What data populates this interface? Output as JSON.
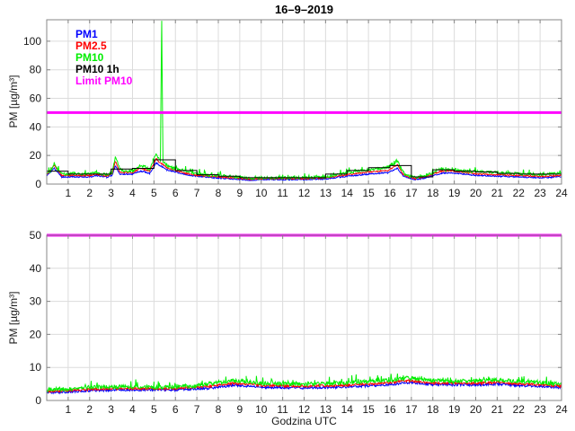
{
  "figure": {
    "title": "16–9–2019"
  },
  "legend": {
    "items": [
      {
        "label": "PM1",
        "color": "#0000ff"
      },
      {
        "label": "PM2.5",
        "color": "#ff0000"
      },
      {
        "label": "PM10",
        "color": "#00ee00"
      },
      {
        "label": "PM10 1h",
        "color": "#000000"
      },
      {
        "label": "Limit PM10",
        "color": "#ff00ff"
      }
    ]
  },
  "chart_data": [
    {
      "type": "line",
      "title": "16–9–2019",
      "xlabel": "",
      "ylabel": "PM [µg/m³]",
      "xlim": [
        0,
        24
      ],
      "ylim": [
        0,
        115
      ],
      "xticks": [
        1,
        2,
        3,
        4,
        5,
        6,
        7,
        8,
        9,
        10,
        11,
        12,
        13,
        14,
        15,
        16,
        17,
        18,
        19,
        20,
        21,
        22,
        23,
        24
      ],
      "yticks": [
        0,
        20,
        40,
        60,
        80,
        100
      ],
      "grid": true,
      "legend_position": "top-left-inside",
      "series": [
        {
          "name": "PM1",
          "color": "#0000ff",
          "width": 1,
          "noise": 0.45,
          "spikes": 0,
          "keypoints": [
            [
              0,
              5.5
            ],
            [
              0.35,
              11
            ],
            [
              0.7,
              5
            ],
            [
              1,
              5
            ],
            [
              2,
              5
            ],
            [
              2.3,
              6
            ],
            [
              2.8,
              4.8
            ],
            [
              3.05,
              6
            ],
            [
              3.2,
              13
            ],
            [
              3.4,
              7
            ],
            [
              3.6,
              7
            ],
            [
              4,
              7
            ],
            [
              4.35,
              9
            ],
            [
              4.6,
              8.5
            ],
            [
              4.8,
              7.5
            ],
            [
              4.95,
              11
            ],
            [
              5.1,
              15
            ],
            [
              5.25,
              13
            ],
            [
              5.4,
              12
            ],
            [
              5.6,
              10
            ],
            [
              6,
              8.5
            ],
            [
              6.5,
              6.5
            ],
            [
              7,
              5.5
            ],
            [
              8,
              4.2
            ],
            [
              9,
              3.3
            ],
            [
              9.5,
              2.8
            ],
            [
              10,
              3.2
            ],
            [
              11,
              3.2
            ],
            [
              12,
              3.2
            ],
            [
              13,
              3.6
            ],
            [
              14,
              5.5
            ],
            [
              15,
              7
            ],
            [
              15.9,
              8
            ],
            [
              16.35,
              11
            ],
            [
              16.6,
              6
            ],
            [
              16.9,
              4
            ],
            [
              17.2,
              3.2
            ],
            [
              17.6,
              4
            ],
            [
              18,
              6
            ],
            [
              18.4,
              7.5
            ],
            [
              18.9,
              7.8
            ],
            [
              19.4,
              7
            ],
            [
              20,
              6.2
            ],
            [
              21,
              5.5
            ],
            [
              22,
              5
            ],
            [
              23,
              4.5
            ],
            [
              23.5,
              4.8
            ],
            [
              24,
              5.2
            ]
          ]
        },
        {
          "name": "PM2.5",
          "color": "#ff0000",
          "width": 1,
          "noise": 0.45,
          "spikes": 0,
          "keypoints": [
            [
              0,
              6.5
            ],
            [
              0.35,
              13
            ],
            [
              0.7,
              6
            ],
            [
              1,
              6
            ],
            [
              2,
              6
            ],
            [
              2.3,
              7
            ],
            [
              2.8,
              5.6
            ],
            [
              3.05,
              7
            ],
            [
              3.2,
              16
            ],
            [
              3.4,
              8.5
            ],
            [
              3.6,
              8
            ],
            [
              4,
              8
            ],
            [
              4.35,
              11
            ],
            [
              4.6,
              10
            ],
            [
              4.8,
              9
            ],
            [
              4.95,
              13
            ],
            [
              5.1,
              18
            ],
            [
              5.25,
              15
            ],
            [
              5.4,
              14
            ],
            [
              5.6,
              11.5
            ],
            [
              6,
              9.5
            ],
            [
              6.5,
              7.5
            ],
            [
              7,
              6.2
            ],
            [
              8,
              5
            ],
            [
              9,
              4
            ],
            [
              9.5,
              3.3
            ],
            [
              10,
              3.8
            ],
            [
              11,
              3.8
            ],
            [
              12,
              3.8
            ],
            [
              13,
              4.3
            ],
            [
              14,
              6.5
            ],
            [
              15,
              8.5
            ],
            [
              15.9,
              9.5
            ],
            [
              16.35,
              13.5
            ],
            [
              16.6,
              7
            ],
            [
              16.9,
              4.8
            ],
            [
              17.2,
              3.9
            ],
            [
              17.6,
              5
            ],
            [
              18,
              7
            ],
            [
              18.4,
              9
            ],
            [
              18.9,
              9.3
            ],
            [
              19.4,
              8.2
            ],
            [
              20,
              7.3
            ],
            [
              21,
              6.5
            ],
            [
              22,
              6
            ],
            [
              23,
              5.4
            ],
            [
              23.5,
              5.7
            ],
            [
              24,
              6.1
            ]
          ]
        },
        {
          "name": "PM10",
          "color": "#00ee00",
          "width": 1,
          "noise": 0.9,
          "spikes": 1.6,
          "keypoints": [
            [
              0,
              8
            ],
            [
              0.2,
              9
            ],
            [
              0.35,
              15
            ],
            [
              0.5,
              10
            ],
            [
              0.7,
              7
            ],
            [
              1,
              7
            ],
            [
              1.3,
              7.5
            ],
            [
              1.7,
              7
            ],
            [
              2,
              7
            ],
            [
              2.3,
              8.5
            ],
            [
              2.5,
              7
            ],
            [
              2.8,
              6.5
            ],
            [
              3.05,
              8
            ],
            [
              3.2,
              19
            ],
            [
              3.4,
              11
            ],
            [
              3.6,
              9
            ],
            [
              3.9,
              9
            ],
            [
              4.1,
              10
            ],
            [
              4.35,
              13
            ],
            [
              4.6,
              12
            ],
            [
              4.8,
              10
            ],
            [
              4.95,
              16
            ],
            [
              5.1,
              21
            ],
            [
              5.25,
              17
            ],
            [
              5.3,
              16
            ],
            [
              5.36,
              115
            ],
            [
              5.42,
              16
            ],
            [
              5.55,
              14
            ],
            [
              5.7,
              12
            ],
            [
              6,
              11
            ],
            [
              6.3,
              10
            ],
            [
              6.6,
              8.5
            ],
            [
              7,
              7
            ],
            [
              7.5,
              6.5
            ],
            [
              8,
              6
            ],
            [
              8.5,
              5.5
            ],
            [
              9,
              5
            ],
            [
              9.4,
              4
            ],
            [
              9.6,
              3.9
            ],
            [
              10,
              4.5
            ],
            [
              10.5,
              4.3
            ],
            [
              11,
              4.5
            ],
            [
              11.5,
              4.4
            ],
            [
              12,
              4.5
            ],
            [
              12.5,
              4.6
            ],
            [
              13,
              5
            ],
            [
              13.5,
              6.5
            ],
            [
              14,
              8
            ],
            [
              14.5,
              9
            ],
            [
              15,
              10
            ],
            [
              15.5,
              11
            ],
            [
              15.9,
              12
            ],
            [
              16.2,
              14
            ],
            [
              16.35,
              16
            ],
            [
              16.5,
              12
            ],
            [
              16.7,
              6.5
            ],
            [
              16.9,
              5.5
            ],
            [
              17.2,
              4.8
            ],
            [
              17.6,
              5.5
            ],
            [
              18,
              8
            ],
            [
              18.4,
              11
            ],
            [
              18.6,
              9.8
            ],
            [
              18.9,
              10.8
            ],
            [
              19.1,
              10
            ],
            [
              19.4,
              9.2
            ],
            [
              19.7,
              8.8
            ],
            [
              20,
              8.8
            ],
            [
              20.5,
              8.6
            ],
            [
              21,
              8.2
            ],
            [
              21.5,
              7.6
            ],
            [
              22,
              7.2
            ],
            [
              22.5,
              7.2
            ],
            [
              23,
              6.8
            ],
            [
              23.5,
              7.2
            ],
            [
              24,
              7.6
            ]
          ]
        }
      ],
      "hourly_series": {
        "name": "PM10 1h",
        "color": "#000000",
        "width": 1,
        "values": [
          9,
          7,
          7,
          10.5,
          11,
          17,
          9.5,
          6.5,
          5.5,
          4.5,
          4.5,
          4.5,
          4.5,
          7,
          9.5,
          11.5,
          13,
          5,
          10,
          9,
          8.5,
          7.5,
          7,
          7
        ]
      },
      "limit_line": {
        "name": "Limit PM10",
        "color": "#ff00ff",
        "value": 50,
        "width": 3
      }
    },
    {
      "type": "line",
      "title": "",
      "xlabel": "Godzina UTC",
      "ylabel": "PM [µg/m³]",
      "xlim": [
        0,
        24
      ],
      "ylim": [
        0,
        50
      ],
      "xticks": [
        1,
        2,
        3,
        4,
        5,
        6,
        7,
        8,
        9,
        10,
        11,
        12,
        13,
        14,
        15,
        16,
        17,
        18,
        19,
        20,
        21,
        22,
        23,
        24
      ],
      "yticks": [
        0,
        10,
        20,
        30,
        40,
        50
      ],
      "grid": true,
      "series": [
        {
          "name": "PM1",
          "color": "#0000ff",
          "width": 1,
          "noise": 0.35,
          "spikes": 0,
          "keypoints": [
            [
              0,
              2.4
            ],
            [
              1,
              2.6
            ],
            [
              2,
              3
            ],
            [
              4,
              3.2
            ],
            [
              6,
              3.2
            ],
            [
              7.5,
              3.7
            ],
            [
              8,
              4
            ],
            [
              8.7,
              4.6
            ],
            [
              9.3,
              4.4
            ],
            [
              10,
              4
            ],
            [
              12,
              3.8
            ],
            [
              14,
              4.1
            ],
            [
              16,
              4.8
            ],
            [
              16.8,
              5.4
            ],
            [
              17.3,
              5.2
            ],
            [
              18,
              4.8
            ],
            [
              20,
              4.7
            ],
            [
              21,
              5
            ],
            [
              22,
              4.5
            ],
            [
              23,
              4.3
            ],
            [
              24,
              3.9
            ]
          ]
        },
        {
          "name": "PM2.5",
          "color": "#ff0000",
          "width": 1,
          "noise": 0.35,
          "spikes": 0,
          "keypoints": [
            [
              0,
              2.8
            ],
            [
              1,
              3
            ],
            [
              2,
              3.4
            ],
            [
              4,
              3.6
            ],
            [
              6,
              3.6
            ],
            [
              7.5,
              4.2
            ],
            [
              8,
              4.6
            ],
            [
              8.7,
              5.2
            ],
            [
              9.3,
              5
            ],
            [
              10,
              4.5
            ],
            [
              12,
              4.3
            ],
            [
              14,
              4.6
            ],
            [
              16,
              5.4
            ],
            [
              16.8,
              6
            ],
            [
              17.3,
              5.7
            ],
            [
              18,
              5.3
            ],
            [
              20,
              5.2
            ],
            [
              21,
              5.5
            ],
            [
              22,
              5
            ],
            [
              23,
              4.8
            ],
            [
              24,
              4.3
            ]
          ]
        },
        {
          "name": "PM10",
          "color": "#00ee00",
          "width": 1,
          "noise": 0.6,
          "spikes": 1.0,
          "keypoints": [
            [
              0,
              3.2
            ],
            [
              0.5,
              3.5
            ],
            [
              1,
              3.5
            ],
            [
              1.5,
              3.8
            ],
            [
              2,
              4
            ],
            [
              3,
              4
            ],
            [
              4,
              4.2
            ],
            [
              5,
              4
            ],
            [
              6,
              4.2
            ],
            [
              7,
              4.5
            ],
            [
              7.5,
              5
            ],
            [
              8,
              5.5
            ],
            [
              8.7,
              6
            ],
            [
              9.3,
              5.8
            ],
            [
              10,
              5.2
            ],
            [
              11,
              5
            ],
            [
              12,
              5
            ],
            [
              13,
              5
            ],
            [
              14,
              5.3
            ],
            [
              15,
              5.8
            ],
            [
              16,
              6.2
            ],
            [
              16.8,
              6.8
            ],
            [
              17.3,
              6.5
            ],
            [
              18,
              6
            ],
            [
              19,
              5.8
            ],
            [
              20,
              6
            ],
            [
              21,
              6.3
            ],
            [
              21.5,
              6
            ],
            [
              22,
              5.8
            ],
            [
              23,
              5.5
            ],
            [
              23.5,
              5.2
            ],
            [
              24,
              5
            ]
          ]
        }
      ],
      "limit_line": {
        "name": "Limit PM10",
        "color": "#ff00ff",
        "value": 50,
        "width": 3
      }
    }
  ]
}
